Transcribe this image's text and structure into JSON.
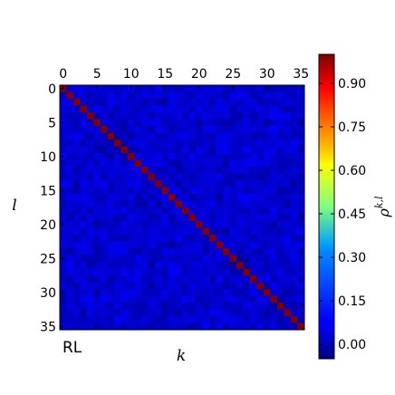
{
  "chart_data": {
    "type": "heatmap",
    "title": "",
    "xlabel": "k",
    "ylabel": "l",
    "size": 36,
    "x_ticks": [
      0,
      5,
      10,
      15,
      20,
      25,
      30,
      35
    ],
    "y_ticks": [
      0,
      5,
      10,
      15,
      20,
      25,
      30,
      35
    ],
    "x_tick_position": "top",
    "diagonal_value": 1.0,
    "off_diagonal_range": [
      -0.02,
      0.08
    ],
    "off_diagonal_typical": 0.03,
    "panel_label": "RL",
    "colormap": "jet",
    "colorbar": {
      "label_base": "ρ",
      "label_sup": "k,l",
      "range": [
        -0.05,
        1.0
      ],
      "ticks": [
        "0.00",
        "0.15",
        "0.30",
        "0.45",
        "0.60",
        "0.75",
        "0.90"
      ]
    },
    "grid": false
  }
}
